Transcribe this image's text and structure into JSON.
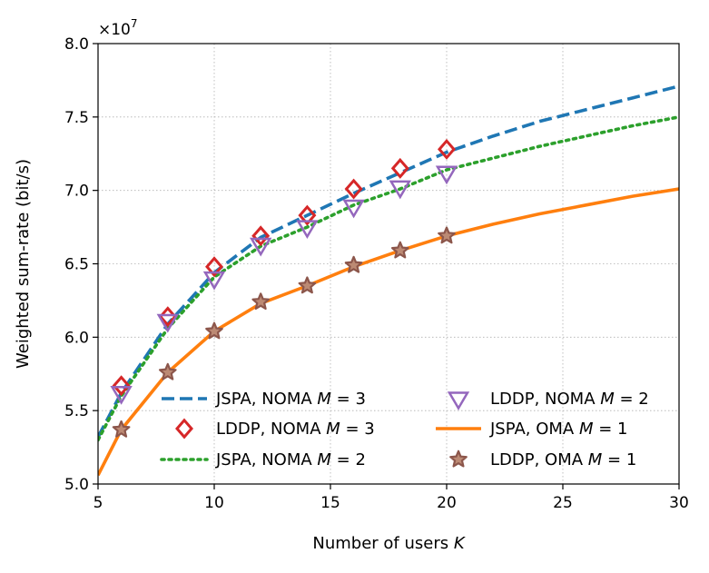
{
  "chart_data": {
    "type": "line",
    "xlabel": "Number of users K",
    "ylabel": "Weighted sum-rate (bit/s)",
    "y_multiplier_label": "×10^7",
    "xlim": [
      5,
      30
    ],
    "ylim": [
      5.0,
      8.0
    ],
    "x_ticks": [
      5,
      10,
      15,
      20,
      25,
      30
    ],
    "y_ticks": [
      5.0,
      5.5,
      6.0,
      6.5,
      7.0,
      7.5,
      8.0
    ],
    "x_tick_labels": [
      "5",
      "10",
      "15",
      "20",
      "25",
      "30"
    ],
    "y_tick_labels": [
      "5.0",
      "5.5",
      "6.0",
      "6.5",
      "7.0",
      "7.5",
      "8.0"
    ],
    "grid": true,
    "legend_position": "lower-right",
    "series": [
      {
        "name": "JSPA, NOMA M = 3",
        "kind": "line",
        "style": "dashed",
        "color": "#1f77b4",
        "x": [
          5,
          6,
          8,
          10,
          12,
          14,
          16,
          18,
          20,
          22,
          24,
          26,
          28,
          30
        ],
        "values": [
          5.32,
          5.62,
          6.09,
          6.44,
          6.68,
          6.83,
          6.98,
          7.12,
          7.26,
          7.37,
          7.47,
          7.55,
          7.63,
          7.71
        ]
      },
      {
        "name": "LDDP, NOMA M = 3",
        "kind": "marker",
        "marker": "diamond",
        "color": "#d62728",
        "x": [
          6,
          8,
          10,
          12,
          14,
          16,
          18,
          20
        ],
        "values": [
          5.67,
          6.14,
          6.48,
          6.69,
          6.83,
          7.01,
          7.15,
          7.28
        ]
      },
      {
        "name": "JSPA, NOMA M = 2",
        "kind": "line",
        "style": "dotted",
        "color": "#2ca02c",
        "x": [
          5,
          6,
          8,
          10,
          12,
          14,
          16,
          18,
          20,
          22,
          24,
          26,
          28,
          30
        ],
        "values": [
          5.3,
          5.6,
          6.06,
          6.41,
          6.62,
          6.75,
          6.9,
          7.01,
          7.14,
          7.22,
          7.3,
          7.37,
          7.44,
          7.5
        ]
      },
      {
        "name": "LDDP, NOMA M = 2",
        "kind": "marker",
        "marker": "triangle-down",
        "color": "#9467bd",
        "x": [
          6,
          8,
          10,
          12,
          14,
          16,
          18,
          20
        ],
        "values": [
          5.62,
          6.11,
          6.4,
          6.63,
          6.75,
          6.89,
          7.02,
          7.12
        ]
      },
      {
        "name": "JSPA, OMA M = 1",
        "kind": "line",
        "style": "solid",
        "color": "#ff7f0e",
        "x": [
          5,
          6,
          8,
          10,
          12,
          14,
          16,
          18,
          20,
          22,
          24,
          26,
          28,
          30
        ],
        "values": [
          5.06,
          5.37,
          5.76,
          6.04,
          6.23,
          6.35,
          6.48,
          6.59,
          6.69,
          6.77,
          6.84,
          6.9,
          6.96,
          7.01
        ]
      },
      {
        "name": "LDDP, OMA M = 1",
        "kind": "marker",
        "marker": "star",
        "color": "#8c564b",
        "x": [
          6,
          8,
          10,
          12,
          14,
          16,
          18,
          20
        ],
        "values": [
          5.37,
          5.76,
          6.04,
          6.24,
          6.35,
          6.49,
          6.59,
          6.69
        ]
      }
    ],
    "legend": [
      {
        "label_prefix": "JSPA, NOMA ",
        "var": "M",
        "label_suffix": " = 3",
        "series": 0
      },
      {
        "label_prefix": "LDDP, NOMA ",
        "var": "M",
        "label_suffix": " = 3",
        "series": 1
      },
      {
        "label_prefix": "JSPA, NOMA ",
        "var": "M",
        "label_suffix": " = 2",
        "series": 2
      },
      {
        "label_prefix": "LDDP, NOMA ",
        "var": "M",
        "label_suffix": " = 2",
        "series": 3
      },
      {
        "label_prefix": "JSPA, OMA ",
        "var": "M",
        "label_suffix": " = 1",
        "series": 4
      },
      {
        "label_prefix": "LDDP, OMA ",
        "var": "M",
        "label_suffix": " = 1",
        "series": 5
      }
    ]
  }
}
